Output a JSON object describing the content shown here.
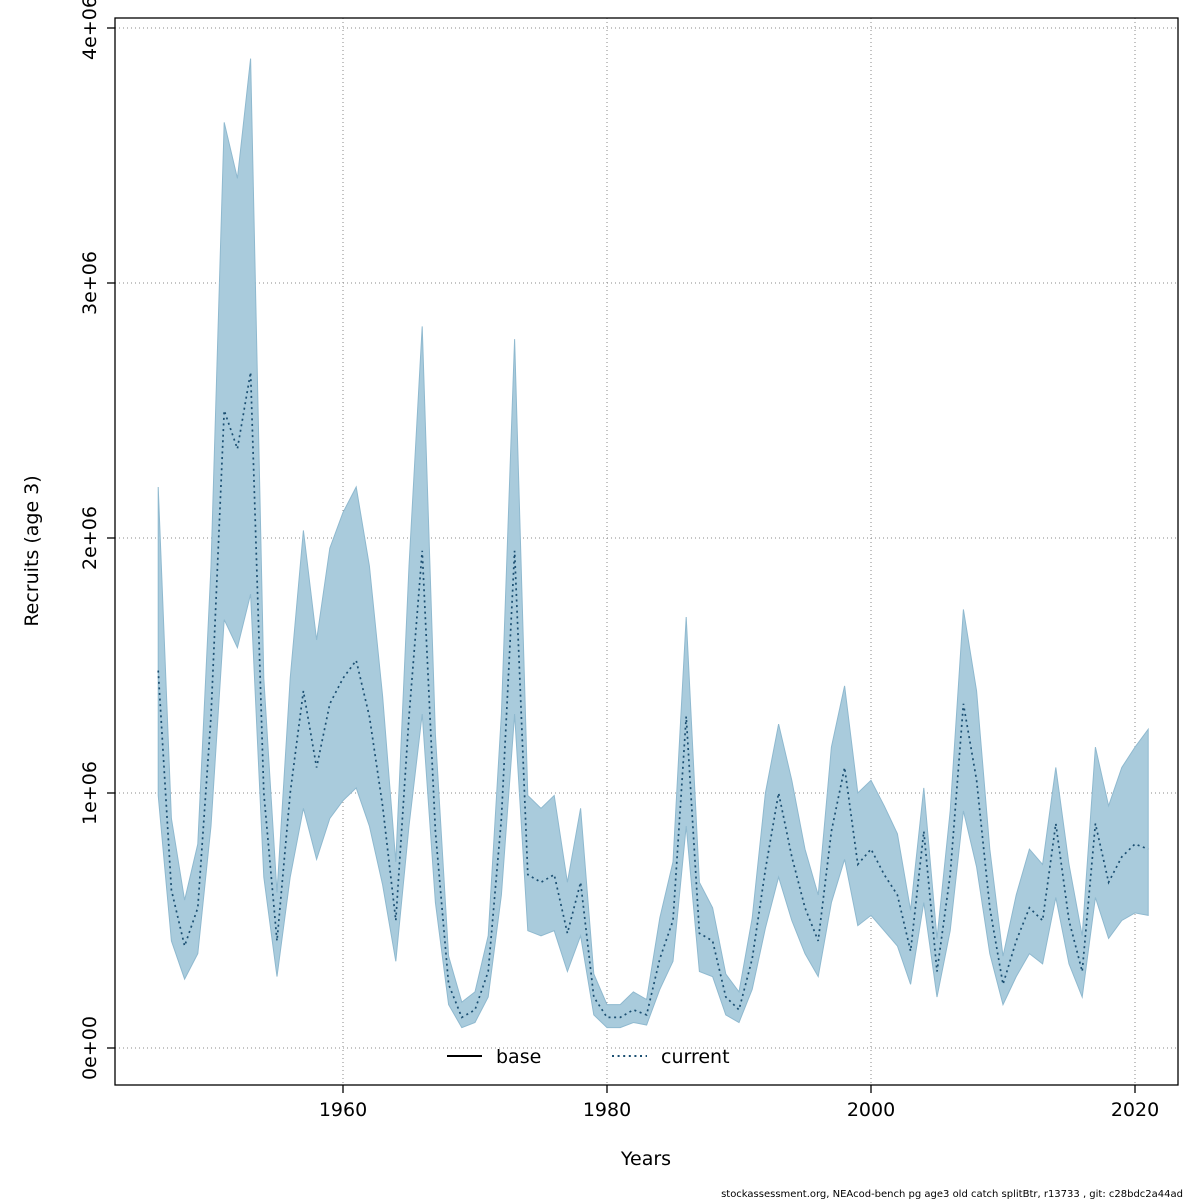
{
  "footer_note": "stockassessment.org, NEAcod-bench pg age3 old catch splitBtr, r13733 , git: c28bdc2a44ad",
  "chart_data": {
    "type": "line",
    "title": "",
    "xlabel": "Years",
    "ylabel": "Recruits (age 3)",
    "x_ticks": [
      1960,
      1980,
      2000,
      2020
    ],
    "y_ticks": [
      "0e+00",
      "1e+06",
      "2e+06",
      "3e+06",
      "4e+06"
    ],
    "y_tick_values": [
      0,
      1000000,
      2000000,
      3000000,
      4000000
    ],
    "xlim": [
      1944.7,
      2023.3
    ],
    "ylim": [
      -160000,
      4050000
    ],
    "grid": true,
    "legend_position": "bottom-center-inside",
    "legend": [
      {
        "label": "base",
        "line_style": "solid",
        "color": "#000000"
      },
      {
        "label": "current",
        "line_style": "dotted",
        "color": "#1b4f72"
      }
    ],
    "series": [
      {
        "name": "current",
        "line_style": "dotted",
        "color": "#1b4f72",
        "band_color": "#a9cbdc",
        "band_edge_color": "#8fb9cf",
        "x": [
          1946,
          1947,
          1948,
          1949,
          1950,
          1951,
          1952,
          1953,
          1954,
          1955,
          1956,
          1957,
          1958,
          1959,
          1960,
          1961,
          1962,
          1963,
          1964,
          1965,
          1966,
          1967,
          1968,
          1969,
          1970,
          1971,
          1972,
          1973,
          1974,
          1975,
          1976,
          1977,
          1978,
          1979,
          1980,
          1981,
          1982,
          1983,
          1984,
          1985,
          1986,
          1987,
          1988,
          1989,
          1990,
          1991,
          1992,
          1993,
          1994,
          1995,
          1996,
          1997,
          1998,
          1999,
          2000,
          2001,
          2002,
          2003,
          2004,
          2005,
          2006,
          2007,
          2008,
          2009,
          2010,
          2011,
          2012,
          2013,
          2014,
          2015,
          2016,
          2017,
          2018,
          2019,
          2020,
          2021
        ],
        "values": [
          1480000,
          620000,
          400000,
          550000,
          1300000,
          2500000,
          2350000,
          2650000,
          1000000,
          420000,
          1000000,
          1400000,
          1100000,
          1350000,
          1450000,
          1520000,
          1300000,
          950000,
          500000,
          1300000,
          1950000,
          850000,
          250000,
          120000,
          150000,
          300000,
          900000,
          1950000,
          680000,
          650000,
          680000,
          450000,
          650000,
          200000,
          120000,
          120000,
          150000,
          130000,
          350000,
          500000,
          1300000,
          450000,
          420000,
          200000,
          150000,
          350000,
          700000,
          1000000,
          750000,
          550000,
          420000,
          850000,
          1100000,
          720000,
          780000,
          680000,
          600000,
          380000,
          850000,
          300000,
          680000,
          1350000,
          1050000,
          550000,
          250000,
          420000,
          550000,
          500000,
          880000,
          500000,
          300000,
          880000,
          650000,
          750000,
          800000,
          780000
        ],
        "lower": [
          990000,
          420000,
          270000,
          370000,
          870000,
          1680000,
          1570000,
          1780000,
          670000,
          280000,
          670000,
          940000,
          740000,
          900000,
          970000,
          1020000,
          870000,
          640000,
          340000,
          870000,
          1310000,
          570000,
          170000,
          80000,
          100000,
          200000,
          600000,
          1310000,
          460000,
          440000,
          460000,
          300000,
          440000,
          130000,
          80000,
          80000,
          100000,
          90000,
          230000,
          340000,
          870000,
          300000,
          280000,
          130000,
          100000,
          230000,
          470000,
          670000,
          500000,
          370000,
          280000,
          570000,
          740000,
          480000,
          520000,
          460000,
          400000,
          250000,
          570000,
          200000,
          460000,
          930000,
          710000,
          370000,
          170000,
          280000,
          370000,
          330000,
          590000,
          330000,
          200000,
          590000,
          430000,
          500000,
          530000,
          520000
        ],
        "upper": [
          2200000,
          900000,
          580000,
          800000,
          1890000,
          3630000,
          3410000,
          3880000,
          1450000,
          610000,
          1450000,
          2030000,
          1600000,
          1960000,
          2100000,
          2200000,
          1890000,
          1380000,
          730000,
          1890000,
          2830000,
          1230000,
          360000,
          180000,
          220000,
          440000,
          1310000,
          2780000,
          990000,
          940000,
          990000,
          650000,
          940000,
          290000,
          170000,
          170000,
          220000,
          190000,
          510000,
          730000,
          1690000,
          650000,
          550000,
          290000,
          220000,
          510000,
          1000000,
          1270000,
          1050000,
          780000,
          600000,
          1180000,
          1420000,
          1000000,
          1050000,
          950000,
          840000,
          540000,
          1020000,
          430000,
          930000,
          1720000,
          1400000,
          780000,
          360000,
          600000,
          780000,
          720000,
          1100000,
          720000,
          440000,
          1180000,
          950000,
          1100000,
          1180000,
          1250000
        ]
      }
    ]
  }
}
